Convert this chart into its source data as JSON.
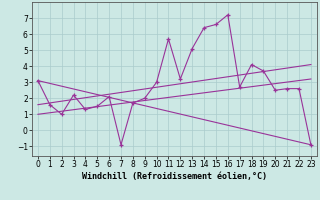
{
  "xlabel": "Windchill (Refroidissement éolien,°C)",
  "background_color": "#cce8e4",
  "grid_color": "#aacccc",
  "line_color": "#993399",
  "xlim": [
    -0.5,
    23.5
  ],
  "ylim": [
    -1.6,
    8.0
  ],
  "yticks": [
    -1,
    0,
    1,
    2,
    3,
    4,
    5,
    6,
    7
  ],
  "xticks": [
    0,
    1,
    2,
    3,
    4,
    5,
    6,
    7,
    8,
    9,
    10,
    11,
    12,
    13,
    14,
    15,
    16,
    17,
    18,
    19,
    20,
    21,
    22,
    23
  ],
  "main_x": [
    0,
    1,
    2,
    3,
    4,
    5,
    6,
    7,
    8,
    9,
    10,
    11,
    12,
    13,
    14,
    15,
    16,
    17,
    18,
    19,
    20,
    21,
    22,
    23
  ],
  "main_y": [
    3.1,
    1.6,
    1.0,
    2.2,
    1.3,
    1.5,
    2.1,
    -0.9,
    1.7,
    2.0,
    3.0,
    5.7,
    3.2,
    5.1,
    6.4,
    6.6,
    7.2,
    2.7,
    4.1,
    3.7,
    2.5,
    2.6,
    2.6,
    -0.9
  ],
  "trend_lines": [
    {
      "x": [
        0,
        23
      ],
      "y": [
        3.1,
        -0.9
      ]
    },
    {
      "x": [
        0,
        23
      ],
      "y": [
        1.6,
        4.1
      ]
    },
    {
      "x": [
        0,
        23
      ],
      "y": [
        1.0,
        3.2
      ]
    }
  ],
  "xlabel_fontsize": 6,
  "tick_fontsize": 5.5
}
